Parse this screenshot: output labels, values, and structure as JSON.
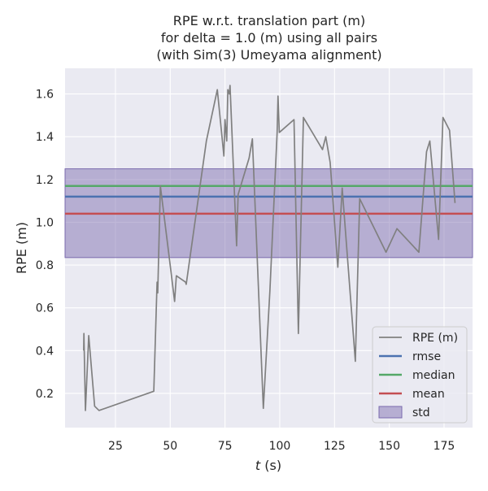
{
  "chart_data": {
    "type": "line",
    "title_lines": [
      "RPE w.r.t. translation part (m)",
      "for delta = 1.0 (m) using all pairs",
      "(with Sim(3) Umeyama alignment)"
    ],
    "xlabel_var": "t",
    "xlabel_unit": " (s)",
    "ylabel": "RPE (m)",
    "xlim": [
      2,
      188
    ],
    "ylim": [
      0.04,
      1.72
    ],
    "xticks": [
      25,
      50,
      75,
      100,
      125,
      150,
      175
    ],
    "yticks": [
      0.2,
      0.4,
      0.6,
      0.8,
      1.0,
      1.2,
      1.4,
      1.6
    ],
    "grid": true,
    "legend_position": "lower-right",
    "series": [
      {
        "name": "RPE (m)",
        "color": "#808080",
        "points": [
          [
            10.5,
            0.4
          ],
          [
            10.6,
            0.48
          ],
          [
            11.3,
            0.12
          ],
          [
            12.8,
            0.47
          ],
          [
            15.5,
            0.14
          ],
          [
            17.5,
            0.12
          ],
          [
            42.5,
            0.21
          ],
          [
            44.0,
            0.72
          ],
          [
            44.3,
            0.67
          ],
          [
            45.5,
            1.17
          ],
          [
            49.5,
            0.84
          ],
          [
            52.0,
            0.63
          ],
          [
            52.8,
            0.75
          ],
          [
            57.0,
            0.72
          ],
          [
            57.3,
            0.71
          ],
          [
            66.5,
            1.38
          ],
          [
            71.5,
            1.62
          ],
          [
            74.5,
            1.31
          ],
          [
            75.0,
            1.48
          ],
          [
            75.8,
            1.38
          ],
          [
            76.3,
            1.62
          ],
          [
            77.0,
            1.6
          ],
          [
            77.3,
            1.64
          ],
          [
            80.3,
            0.89
          ],
          [
            81.0,
            1.13
          ],
          [
            86.0,
            1.3
          ],
          [
            87.5,
            1.39
          ],
          [
            92.5,
            0.13
          ],
          [
            95.5,
            0.68
          ],
          [
            98.8,
            1.42
          ],
          [
            99.2,
            1.59
          ],
          [
            99.8,
            1.42
          ],
          [
            106.5,
            1.48
          ],
          [
            108.5,
            0.48
          ],
          [
            110.8,
            1.49
          ],
          [
            119.5,
            1.34
          ],
          [
            121.0,
            1.4
          ],
          [
            123.0,
            1.28
          ],
          [
            126.5,
            0.79
          ],
          [
            128.5,
            1.16
          ],
          [
            134.5,
            0.35
          ],
          [
            136.5,
            1.11
          ],
          [
            148.5,
            0.86
          ],
          [
            153.5,
            0.97
          ],
          [
            163.5,
            0.86
          ],
          [
            167.0,
            1.33
          ],
          [
            168.5,
            1.38
          ],
          [
            172.5,
            0.92
          ],
          [
            174.5,
            1.49
          ],
          [
            177.5,
            1.43
          ],
          [
            180.0,
            1.09
          ]
        ]
      },
      {
        "name": "rmse",
        "color": "#4c72b0",
        "value": 1.12
      },
      {
        "name": "median",
        "color": "#55a868",
        "value": 1.17
      },
      {
        "name": "mean",
        "color": "#c44e52",
        "value": 1.04
      },
      {
        "name": "std",
        "color": "#8172b2",
        "range": [
          0.835,
          1.25
        ]
      }
    ]
  },
  "colors": {
    "plot_background": "#eaeaf2",
    "grid": "#ffffff",
    "std_fill": "#8172b2",
    "std_edge": "#7a6aad"
  }
}
